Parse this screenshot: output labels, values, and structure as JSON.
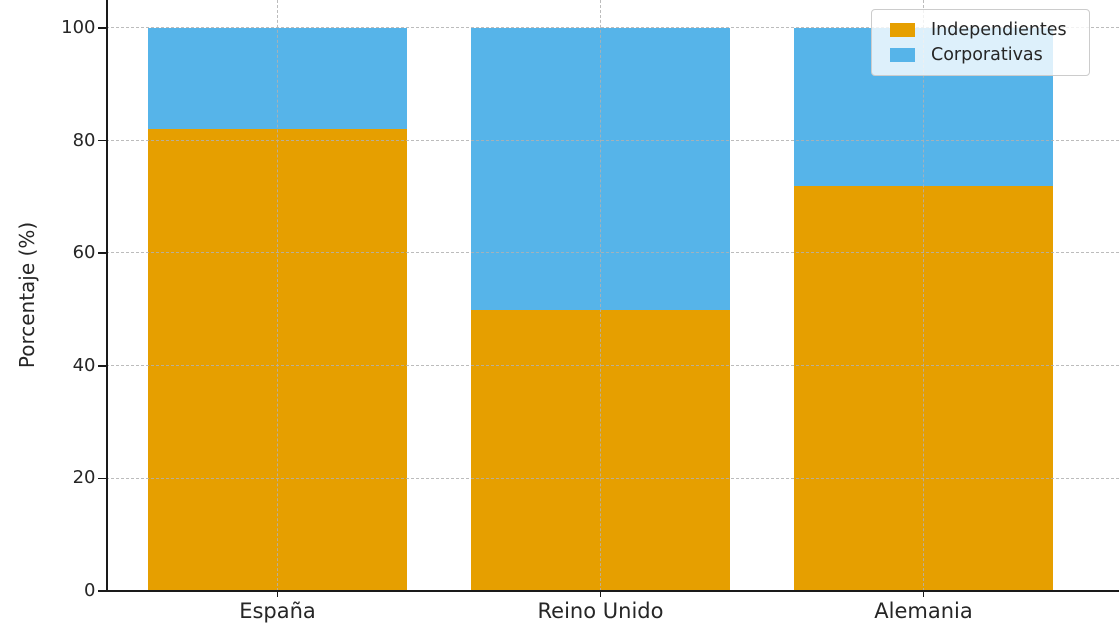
{
  "chart_data": {
    "type": "bar",
    "stacked": true,
    "title": "",
    "categories": [
      "España",
      "Reino Unido",
      "Alemania"
    ],
    "series": [
      {
        "name": "Independientes",
        "color": "#E69F00",
        "values": [
          82,
          50,
          72
        ]
      },
      {
        "name": "Corporativas",
        "color": "#56B4E9",
        "values": [
          18,
          50,
          28
        ]
      }
    ],
    "xlabel": "",
    "ylabel": "Porcentaje (%)",
    "ylim": [
      0,
      100
    ],
    "yticks": [
      0,
      20,
      40,
      60,
      80,
      100
    ],
    "ytick_labels": [
      "0",
      "20",
      "40",
      "60",
      "80",
      "100"
    ],
    "grid": true,
    "grid_style": "dashed",
    "grid_above_bars": true,
    "grid_color": "#b0b0b0",
    "axis_color": "#1a1a1a",
    "text_color": "#262626",
    "background_color": "#ffffff",
    "legend": {
      "position": "upper right",
      "items": [
        "Independientes",
        "Corporativas"
      ]
    }
  }
}
